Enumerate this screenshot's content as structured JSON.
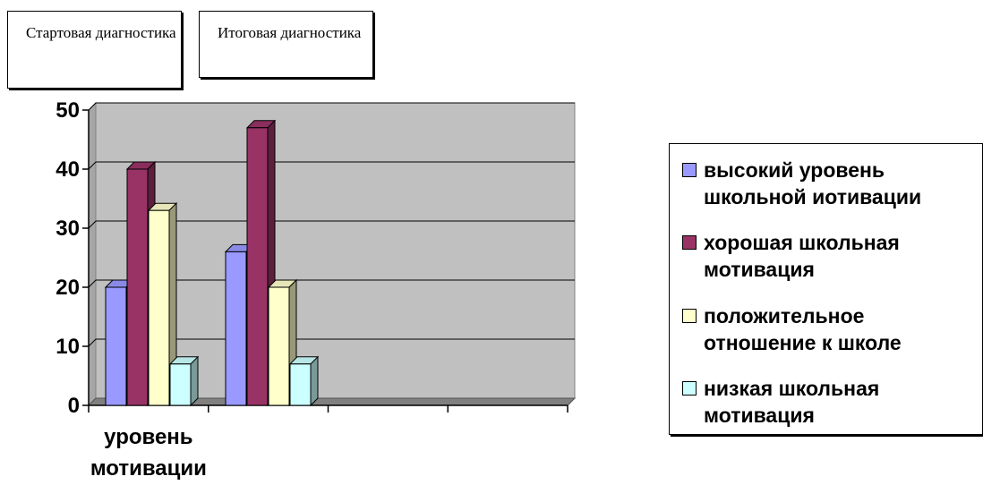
{
  "labels": {
    "start": "Стартовая диагностика",
    "final": "Итоговая диагностика"
  },
  "chart_data": {
    "type": "bar",
    "categories": [
      "уровень мотивации",
      "",
      "",
      ""
    ],
    "groups": [
      {
        "values": [
          20,
          40,
          33,
          7
        ]
      },
      {
        "values": [
          26,
          47,
          20,
          7
        ]
      }
    ],
    "series": [
      {
        "name": "высокий уровень школьной иотивации",
        "color": "#9999ff"
      },
      {
        "name": "хорошая школьная мотивация",
        "color": "#993366"
      },
      {
        "name": "положительное отношение к школе",
        "color": "#ffffcc"
      },
      {
        "name": "низкая школьная мотивация",
        "color": "#ccffff"
      }
    ],
    "ylim": [
      0,
      50
    ],
    "yticks": [
      0,
      10,
      20,
      30,
      40,
      50
    ],
    "grid": true,
    "legend": "right"
  }
}
